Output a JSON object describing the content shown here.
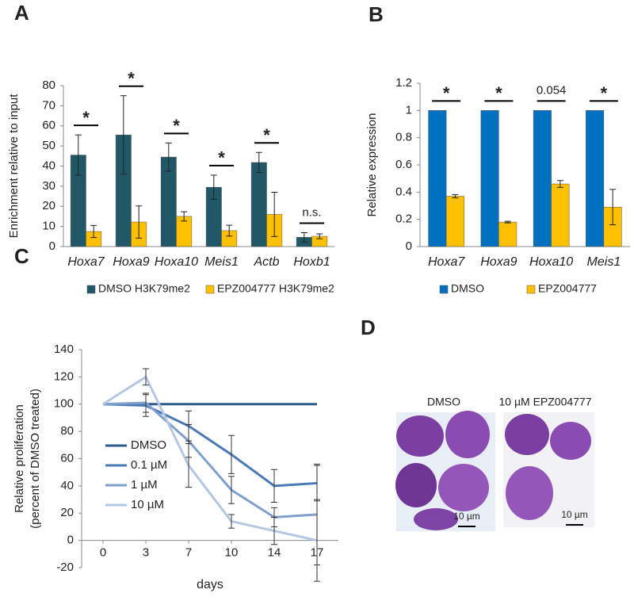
{
  "chart_data": [
    {
      "type": "bar",
      "panel_label": "A",
      "ylabel": "Enrichment relative to input",
      "categories": [
        "Hoxa7",
        "Hoxa9",
        "Hoxa10",
        "Meis1",
        "Actb",
        "Hoxb1"
      ],
      "series": [
        {
          "name": "DMSO H3K79me2",
          "color": "#215868",
          "values": [
            45.5,
            55.5,
            44.5,
            29.5,
            41.8,
            4.6
          ],
          "errors": [
            10,
            19.5,
            7,
            6,
            5,
            2.3
          ]
        },
        {
          "name": "EPZ004777 H3K79me2",
          "color": "#ffc000",
          "values": [
            7.5,
            12.2,
            15,
            7.9,
            16,
            5.1
          ],
          "errors": [
            3,
            8,
            2.3,
            2.7,
            11,
            1.2
          ]
        }
      ],
      "annotations": [
        "*",
        "*",
        "*",
        "*",
        "*",
        "n.s."
      ],
      "ylim": [
        0,
        80
      ],
      "yticks": [
        0,
        10,
        20,
        30,
        40,
        50,
        60,
        70,
        80
      ],
      "legend": "bottom"
    },
    {
      "type": "bar",
      "panel_label": "B",
      "ylabel": "Relative expression",
      "categories": [
        "Hoxa7",
        "Hoxa9",
        "Hoxa10",
        "Meis1"
      ],
      "series": [
        {
          "name": "DMSO",
          "color": "#0070c0",
          "values": [
            1,
            1,
            1,
            1
          ]
        },
        {
          "name": "EPZ004777",
          "color": "#ffc000",
          "values": [
            0.37,
            0.18,
            0.46,
            0.29
          ],
          "errors": [
            0.012,
            0.006,
            0.025,
            0.13
          ]
        }
      ],
      "annotations": [
        "*",
        "*",
        "0.054",
        "*"
      ],
      "ylim": [
        0,
        1.2
      ],
      "yticks": [
        0,
        0.2,
        0.4,
        0.6,
        0.8,
        1,
        1.2
      ],
      "legend": "bottom"
    },
    {
      "type": "line",
      "panel_label": "C",
      "ylabel": [
        "Relative proliferation",
        "(percent of DMSO treated)"
      ],
      "xlabel": "days",
      "categories": [
        "0",
        "3",
        "7",
        "10",
        "14",
        "17"
      ],
      "series": [
        {
          "name": "DMSO",
          "color": "#2e5c8a",
          "values": [
            100,
            100,
            100,
            100,
            100,
            100
          ]
        },
        {
          "name": "0.1 µM",
          "color": "#4a7ab5",
          "values": [
            100,
            99,
            84,
            63,
            40,
            42
          ],
          "errors": [
            null,
            8,
            11,
            14,
            12,
            13
          ]
        },
        {
          "name": "1 µM",
          "color": "#7f9fcd",
          "values": [
            100,
            101,
            73,
            37,
            17,
            19
          ],
          "errors": [
            null,
            7,
            12,
            10,
            7,
            37
          ]
        },
        {
          "name": "10 µM",
          "color": "#b3c7e3",
          "values": [
            100,
            120,
            55,
            14,
            7,
            0
          ],
          "errors": [
            null,
            6,
            16,
            5,
            10,
            30
          ]
        }
      ],
      "ylim": [
        -20,
        140
      ],
      "yticks": [
        -20,
        0,
        20,
        40,
        60,
        80,
        100,
        120,
        140
      ],
      "legend": "lower left"
    }
  ],
  "panel_D": {
    "panel_label": "D",
    "images": [
      {
        "label": "DMSO",
        "scale_bar": "10 µm"
      },
      {
        "label": "10 µM EPZ004777",
        "scale_bar": "10 µm"
      }
    ]
  }
}
